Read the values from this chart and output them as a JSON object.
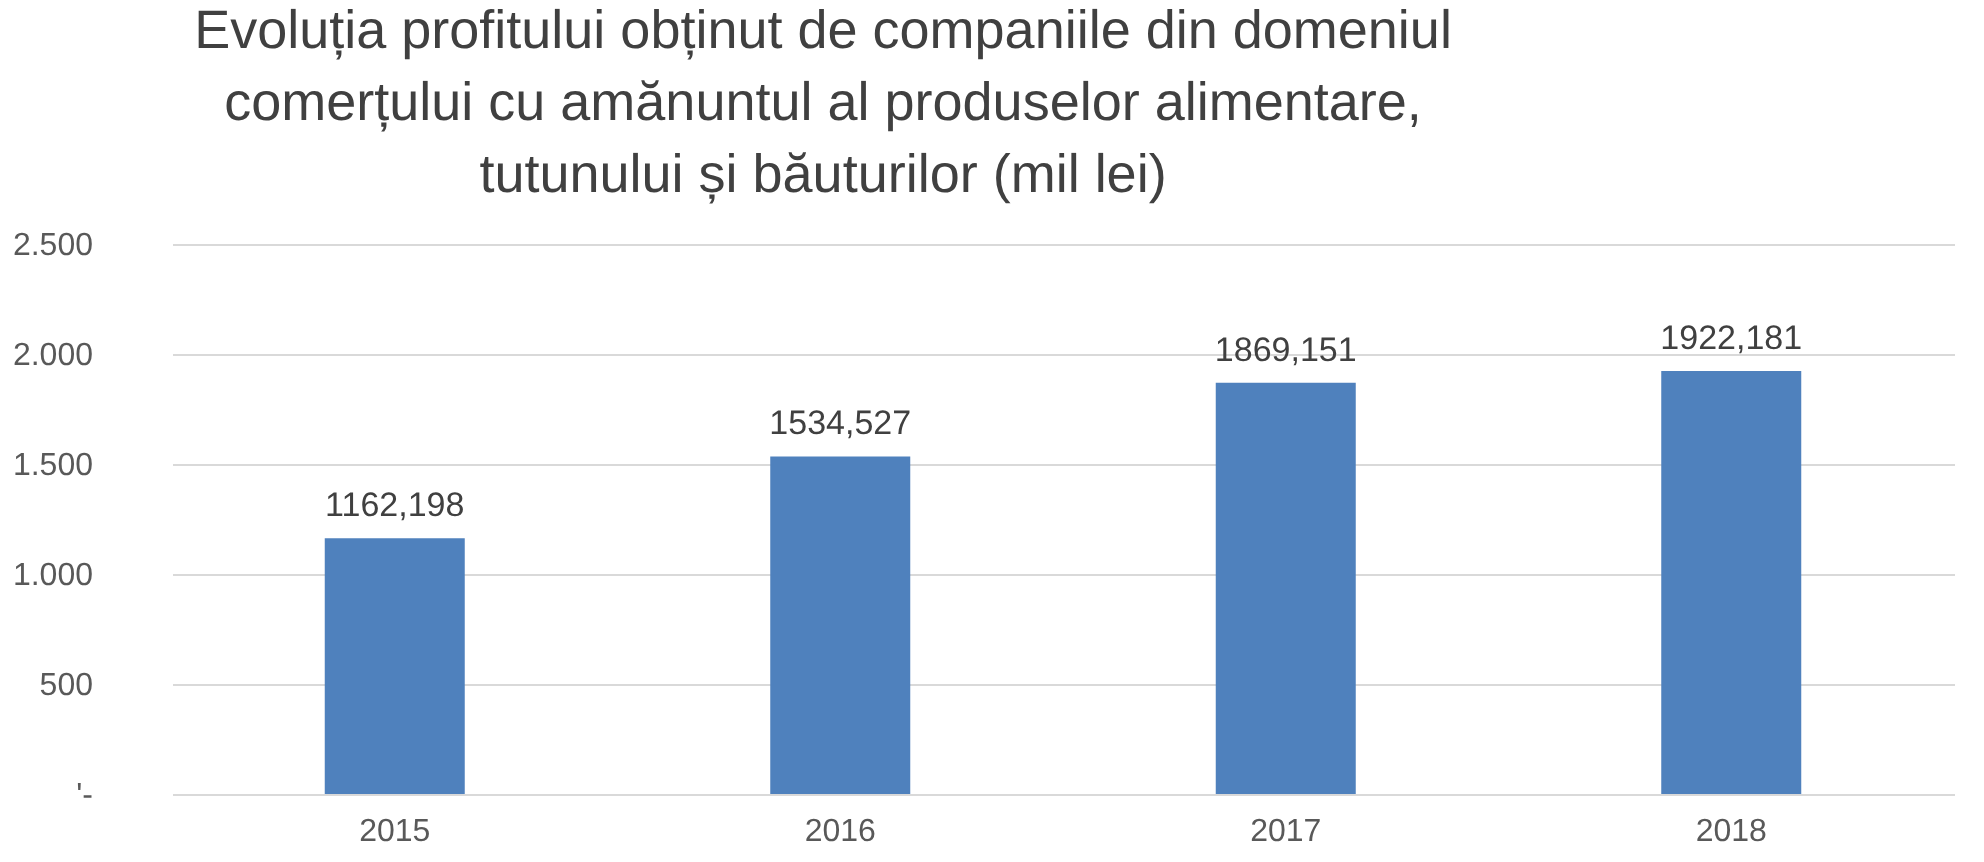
{
  "chart_data": {
    "type": "bar",
    "title": "Evoluția profitului obținut de companiile din domeniul\ncomerțului cu amănuntul al produselor alimentare,\ntutunului și băuturilor (mil lei)",
    "categories": [
      "2015",
      "2016",
      "2017",
      "2018"
    ],
    "values": [
      1162.198,
      1534.527,
      1869.151,
      1922.181
    ],
    "value_labels": [
      "1162,198",
      "1534,527",
      "1869,151",
      "1922,181"
    ],
    "color": "#4f81bd",
    "ylim": [
      0,
      2500
    ],
    "yticks": [
      {
        "value": 0,
        "label": "'-"
      },
      {
        "value": 500,
        "label": "500"
      },
      {
        "value": 1000,
        "label": "1.000"
      },
      {
        "value": 1500,
        "label": "1.500"
      },
      {
        "value": 2000,
        "label": "2.000"
      },
      {
        "value": 2500,
        "label": "2.500"
      }
    ],
    "grid": "y"
  }
}
